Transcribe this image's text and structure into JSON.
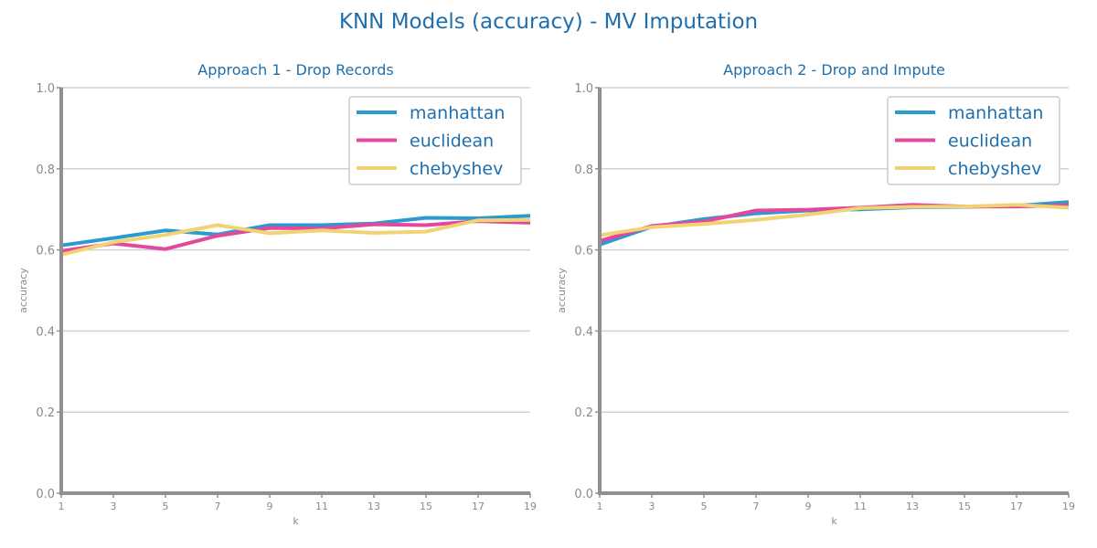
{
  "suptitle": "KNN Models (accuracy) - MV Imputation",
  "colors": {
    "manhattan": "#2a9bd1",
    "euclidean": "#e2489b",
    "chebyshev": "#f2d374"
  },
  "chart_data": [
    {
      "type": "line",
      "title": "Approach 1 - Drop Records",
      "xlabel": "k",
      "ylabel": "accuracy",
      "x": [
        1,
        3,
        5,
        7,
        9,
        11,
        13,
        15,
        17,
        19
      ],
      "xticks": [
        "1",
        "3",
        "5",
        "7",
        "9",
        "11",
        "13",
        "15",
        "17",
        "19"
      ],
      "yticks": [
        "0.0",
        "0.2",
        "0.4",
        "0.6",
        "0.8",
        "1.0"
      ],
      "ylim": [
        0,
        1
      ],
      "grid": true,
      "legend_position": "top-right",
      "series": [
        {
          "name": "manhattan",
          "values": [
            0.611,
            0.629,
            0.648,
            0.638,
            0.661,
            0.661,
            0.665,
            0.679,
            0.678,
            0.684
          ]
        },
        {
          "name": "euclidean",
          "values": [
            0.597,
            0.616,
            0.602,
            0.635,
            0.654,
            0.653,
            0.663,
            0.661,
            0.671,
            0.667
          ]
        },
        {
          "name": "chebyshev",
          "values": [
            0.588,
            0.619,
            0.637,
            0.661,
            0.641,
            0.648,
            0.642,
            0.645,
            0.673,
            0.674
          ]
        }
      ]
    },
    {
      "type": "line",
      "title": "Approach 2 - Drop and Impute",
      "xlabel": "k",
      "ylabel": "accuracy",
      "x": [
        1,
        3,
        5,
        7,
        9,
        11,
        13,
        15,
        17,
        19
      ],
      "xticks": [
        "1",
        "3",
        "5",
        "7",
        "9",
        "11",
        "13",
        "15",
        "17",
        "19"
      ],
      "yticks": [
        "0.0",
        "0.2",
        "0.4",
        "0.6",
        "0.8",
        "1.0"
      ],
      "ylim": [
        0,
        1
      ],
      "grid": true,
      "legend_position": "top-right",
      "series": [
        {
          "name": "manhattan",
          "values": [
            0.613,
            0.657,
            0.676,
            0.69,
            0.697,
            0.7,
            0.705,
            0.706,
            0.709,
            0.718
          ]
        },
        {
          "name": "euclidean",
          "values": [
            0.622,
            0.659,
            0.67,
            0.697,
            0.699,
            0.704,
            0.711,
            0.707,
            0.707,
            0.71
          ]
        },
        {
          "name": "chebyshev",
          "values": [
            0.636,
            0.656,
            0.664,
            0.674,
            0.687,
            0.703,
            0.706,
            0.707,
            0.711,
            0.704
          ]
        }
      ]
    }
  ]
}
